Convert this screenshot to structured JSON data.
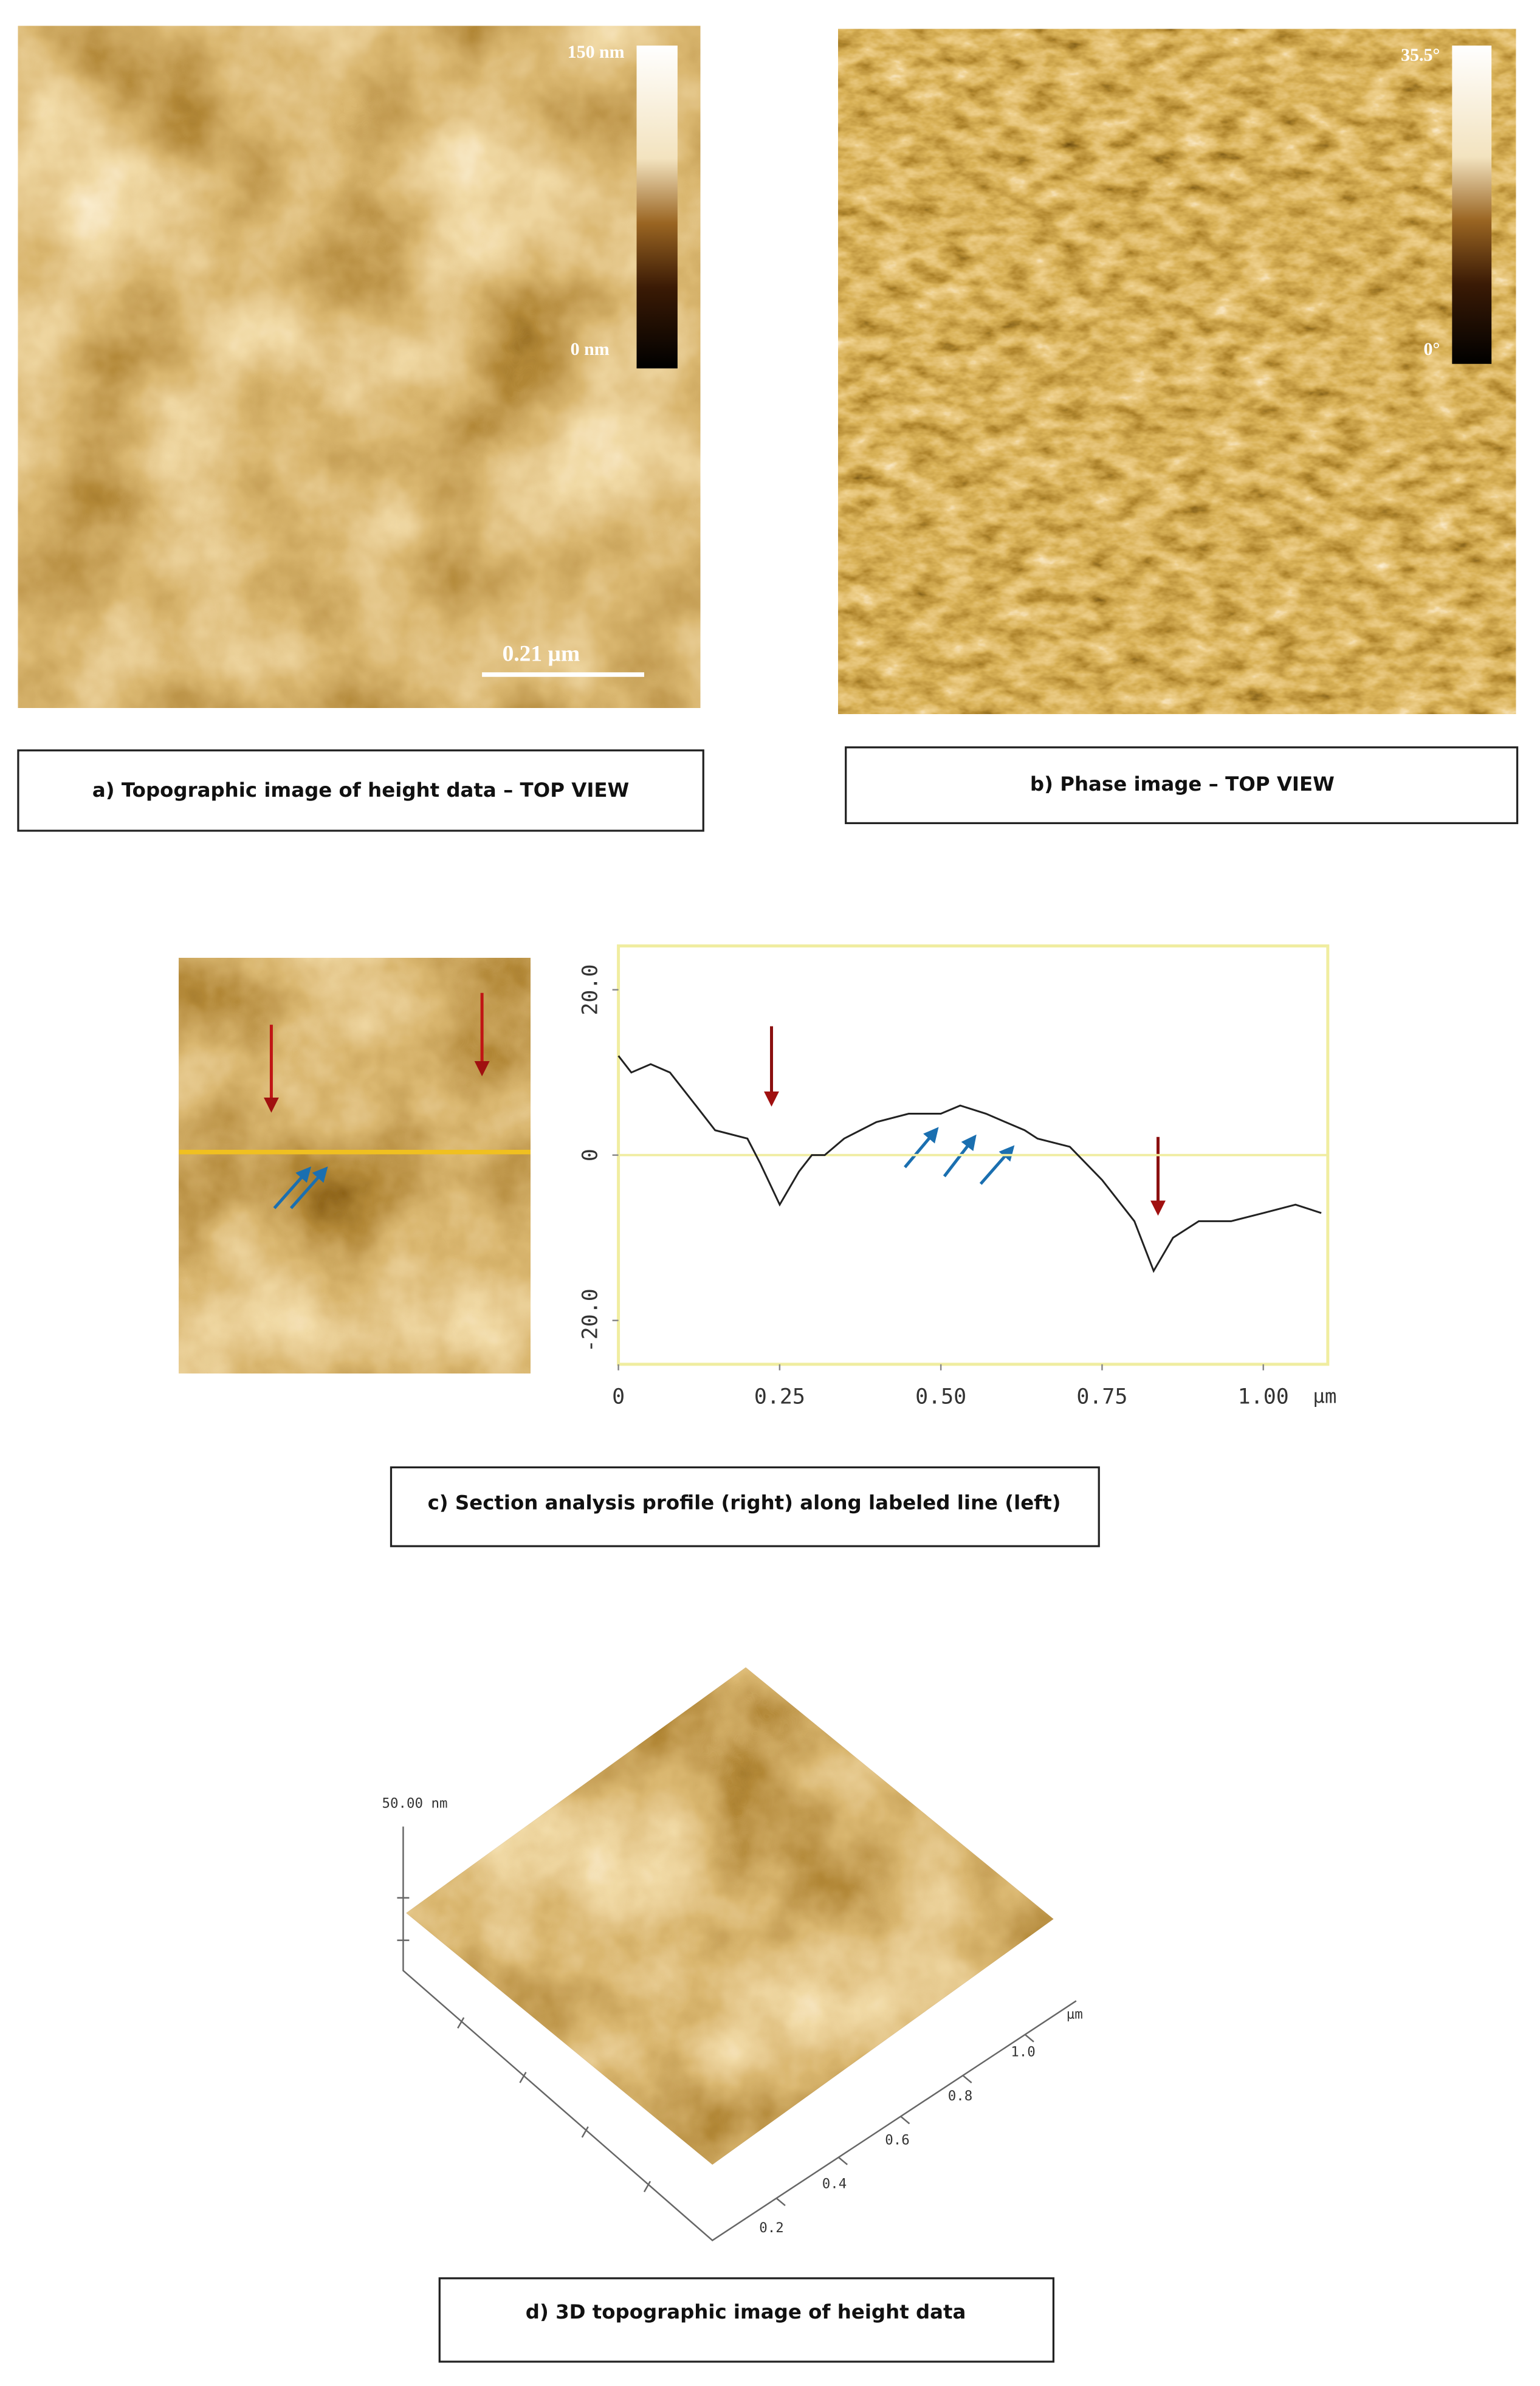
{
  "panels": {
    "a": {
      "caption": "a) Topographic image of height data – TOP VIEW",
      "colorbar_max": "150 nm",
      "colorbar_min": "0 nm",
      "scale_bar": "0.21 µm"
    },
    "b": {
      "caption": "b) Phase image – TOP VIEW",
      "colorbar_max": "35.5°",
      "colorbar_min": "0°"
    },
    "c": {
      "caption": "c) Section analysis profile (right) along labeled line (left)",
      "x_unit": "µm"
    },
    "d": {
      "caption": "d) 3D topographic image of height data",
      "z_label": "50.00 nm",
      "axis_unit": "µm",
      "axis_ticks": [
        "0.2",
        "0.4",
        "0.6",
        "0.8",
        "1.0"
      ]
    }
  },
  "chart_data": {
    "type": "line",
    "color": "#222222",
    "x": [
      0,
      0.02,
      0.05,
      0.08,
      0.12,
      0.15,
      0.2,
      0.22,
      0.25,
      0.28,
      0.3,
      0.32,
      0.35,
      0.4,
      0.45,
      0.5,
      0.53,
      0.57,
      0.6,
      0.63,
      0.65,
      0.7,
      0.75,
      0.8,
      0.83,
      0.86,
      0.9,
      0.95,
      1.0,
      1.05,
      1.09
    ],
    "values": [
      12,
      10,
      11,
      10,
      6,
      3,
      2,
      -1,
      -6,
      -2,
      0,
      0,
      2,
      4,
      5,
      5,
      6,
      5,
      4,
      3,
      2,
      1,
      -3,
      -8,
      -14,
      -10,
      -8,
      -8,
      -7,
      -6,
      -7
    ],
    "xlim": [
      0,
      1.1
    ],
    "ylim": [
      -25.3,
      25.3
    ],
    "xticks": [
      0,
      0.25,
      {
        "value": 0.5,
        "label": "0.50"
      },
      0.75,
      {
        "value": 1,
        "label": "1.00"
      }
    ],
    "yticks": [
      {
        "value": -20,
        "label": "-20.0"
      },
      0,
      {
        "value": 20,
        "label": "20.0"
      }
    ]
  }
}
